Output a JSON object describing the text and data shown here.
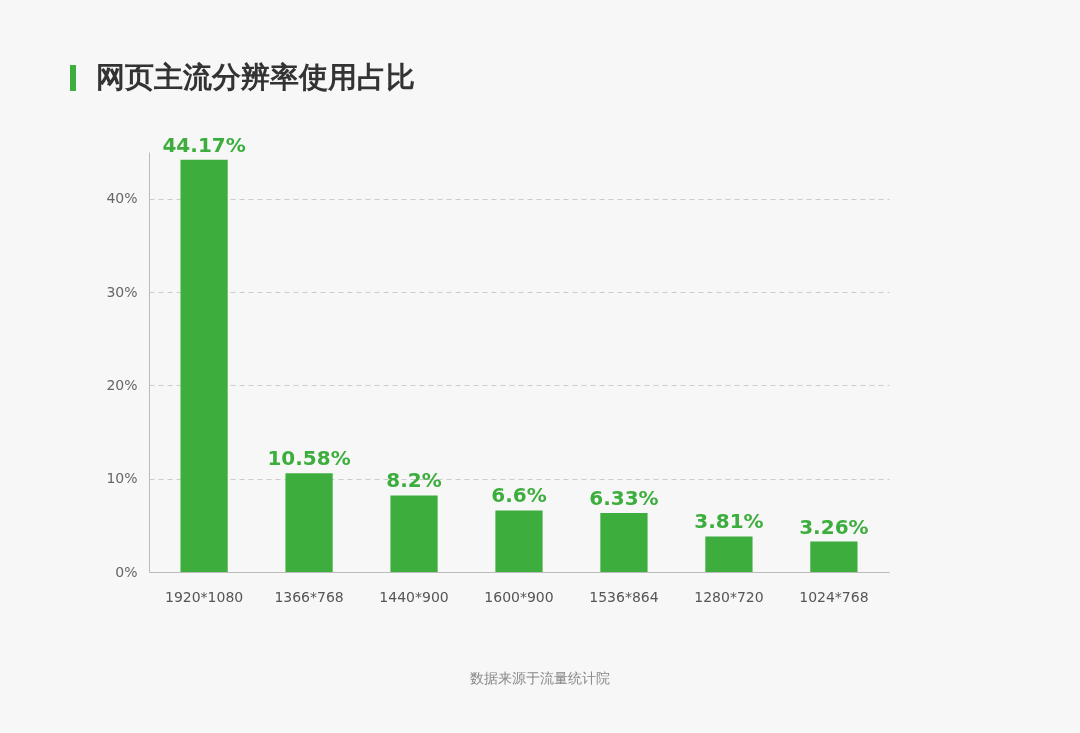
{
  "chart_data": {
    "type": "bar",
    "title": "网页主流分辨率使用占比",
    "categories": [
      "1920*1080",
      "1366*768",
      "1440*900",
      "1600*900",
      "1536*864",
      "1280*720",
      "1024*768"
    ],
    "values": [
      44.17,
      10.58,
      8.2,
      6.6,
      6.33,
      3.81,
      3.26
    ],
    "value_labels": [
      "44.17%",
      "10.58%",
      "8.2%",
      "6.6%",
      "6.33%",
      "3.81%",
      "3.26%"
    ],
    "color": "#3dae3d",
    "ylim": [
      0,
      45
    ],
    "yticks": [
      {
        "value": 0,
        "label": "0%"
      },
      {
        "value": 10,
        "label": "10%"
      },
      {
        "value": 20,
        "label": "20%"
      },
      {
        "value": 30,
        "label": "30%"
      },
      {
        "value": 40,
        "label": "40%"
      }
    ],
    "grid": "y",
    "annotations": [
      "数据来源于流量统计院"
    ]
  }
}
